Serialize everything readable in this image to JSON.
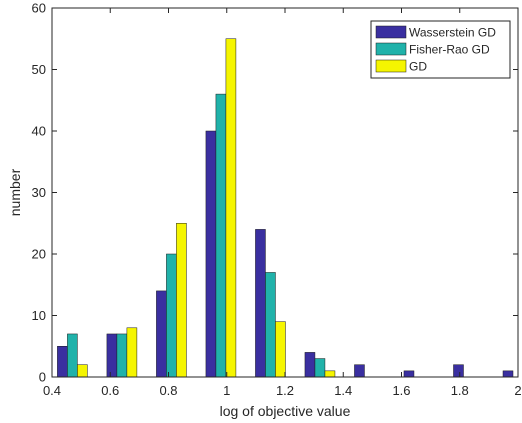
{
  "chart_data": {
    "type": "bar",
    "title": "",
    "xlabel": "log of objective value",
    "ylabel": "number",
    "xlim": [
      0.4,
      2
    ],
    "ylim": [
      0,
      60
    ],
    "x_ticks": [
      "0.4",
      "0.6",
      "0.8",
      "1",
      "1.2",
      "1.4",
      "1.6",
      "1.8",
      "2"
    ],
    "y_ticks": [
      "0",
      "10",
      "20",
      "30",
      "40",
      "50",
      "60"
    ],
    "legend_position": "top-right",
    "grid": false,
    "series": [
      {
        "name": "Wasserstein GD",
        "color": "#3a2fa0",
        "bars": [
          {
            "x": 0.47,
            "value": 5
          },
          {
            "x": 0.64,
            "value": 7
          },
          {
            "x": 0.81,
            "value": 14
          },
          {
            "x": 0.98,
            "value": 40
          },
          {
            "x": 1.15,
            "value": 24
          },
          {
            "x": 1.32,
            "value": 4
          },
          {
            "x": 1.49,
            "value": 2
          },
          {
            "x": 1.66,
            "value": 1
          },
          {
            "x": 1.83,
            "value": 2
          },
          {
            "x": 2.0,
            "value": 1
          }
        ]
      },
      {
        "name": "Fisher-Rao GD",
        "color": "#20b2aa",
        "bars": [
          {
            "x": 0.47,
            "value": 7
          },
          {
            "x": 0.64,
            "value": 7
          },
          {
            "x": 0.81,
            "value": 20
          },
          {
            "x": 0.98,
            "value": 46
          },
          {
            "x": 1.15,
            "value": 17
          },
          {
            "x": 1.32,
            "value": 3
          },
          {
            "x": 1.49,
            "value": 0
          },
          {
            "x": 1.66,
            "value": 0
          },
          {
            "x": 1.83,
            "value": 0
          },
          {
            "x": 2.0,
            "value": 0
          }
        ]
      },
      {
        "name": "GD",
        "color": "#f5f500",
        "bars": [
          {
            "x": 0.47,
            "value": 2
          },
          {
            "x": 0.64,
            "value": 8
          },
          {
            "x": 0.81,
            "value": 25
          },
          {
            "x": 0.98,
            "value": 55
          },
          {
            "x": 1.15,
            "value": 9
          },
          {
            "x": 1.32,
            "value": 1
          },
          {
            "x": 1.49,
            "value": 0
          },
          {
            "x": 1.66,
            "value": 0
          },
          {
            "x": 1.83,
            "value": 0
          },
          {
            "x": 2.0,
            "value": 0
          }
        ]
      }
    ]
  }
}
